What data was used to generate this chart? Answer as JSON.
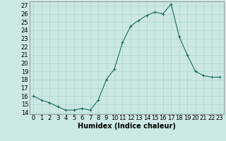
{
  "x": [
    0,
    1,
    2,
    3,
    4,
    5,
    6,
    7,
    8,
    9,
    10,
    11,
    12,
    13,
    14,
    15,
    16,
    17,
    18,
    19,
    20,
    21,
    22,
    23
  ],
  "y": [
    16,
    15.5,
    15.2,
    14.7,
    14.3,
    14.3,
    14.5,
    14.3,
    15.5,
    18.0,
    19.3,
    22.5,
    24.5,
    25.2,
    25.8,
    26.2,
    26.0,
    27.2,
    23.2,
    21.0,
    19.0,
    18.5,
    18.3,
    18.3
  ],
  "xlabel": "Humidex (Indice chaleur)",
  "xlim": [
    -0.5,
    23.5
  ],
  "ylim": [
    13.8,
    27.5
  ],
  "yticks": [
    14,
    15,
    16,
    17,
    18,
    19,
    20,
    21,
    22,
    23,
    24,
    25,
    26,
    27
  ],
  "xticks": [
    0,
    1,
    2,
    3,
    4,
    5,
    6,
    7,
    8,
    9,
    10,
    11,
    12,
    13,
    14,
    15,
    16,
    17,
    18,
    19,
    20,
    21,
    22,
    23
  ],
  "line_color": "#1a6b5e",
  "marker": "+",
  "bg_color": "#cce8e4",
  "grid_color": "#aad4ce",
  "label_fontsize": 7,
  "tick_fontsize": 6
}
